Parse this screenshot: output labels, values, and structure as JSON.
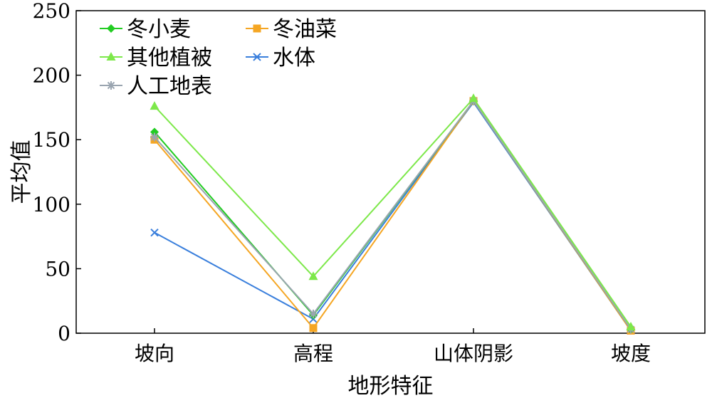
{
  "chart_data": {
    "type": "line",
    "title": "",
    "xlabel": "地形特征",
    "ylabel": "平均值",
    "ylim": [
      0,
      250
    ],
    "yticks": [
      0,
      50,
      100,
      150,
      200,
      250
    ],
    "categories": [
      "坡向",
      "高程",
      "山体阴影",
      "坡度"
    ],
    "grid": false,
    "legend_position": "top-left",
    "series": [
      {
        "name": "冬小麦",
        "values": [
          156,
          14,
          180,
          3
        ],
        "color": "#22cc22",
        "marker": "diamond"
      },
      {
        "name": "冬油菜",
        "values": [
          150,
          4,
          180,
          2
        ],
        "color": "#f5a623",
        "marker": "square"
      },
      {
        "name": "其他植被",
        "values": [
          176,
          44,
          182,
          5
        ],
        "color": "#7de84a",
        "marker": "triangle"
      },
      {
        "name": "水体",
        "values": [
          78,
          11,
          179,
          2
        ],
        "color": "#3a7fdc",
        "marker": "x"
      },
      {
        "name": "人工地表",
        "values": [
          152,
          15,
          180,
          3
        ],
        "color": "#9aa5b0",
        "marker": "star"
      }
    ]
  }
}
